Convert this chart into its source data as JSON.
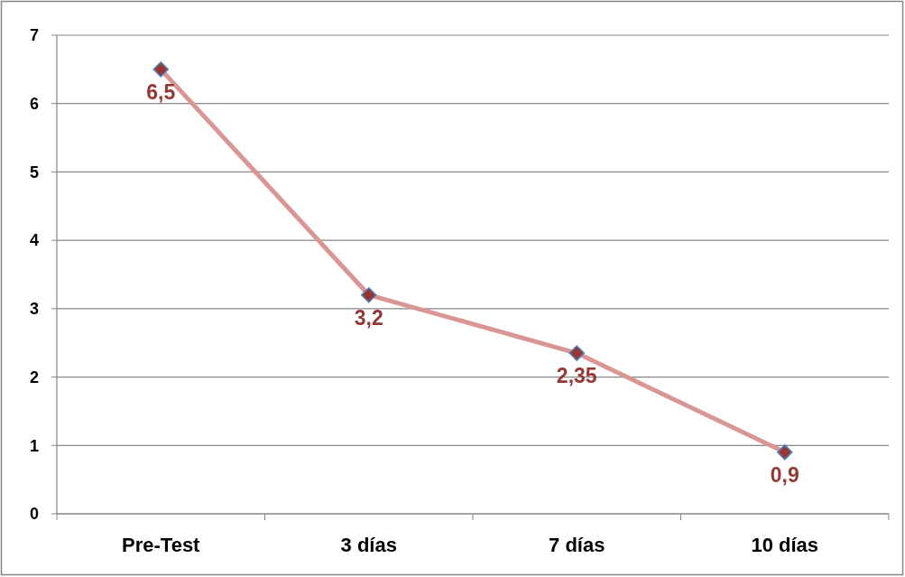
{
  "chart_data": {
    "type": "line",
    "categories": [
      "Pre-Test",
      "3 días",
      "7 días",
      "10 días"
    ],
    "series": [
      {
        "color": "#d99694",
        "values": [
          6.5,
          3.2,
          2.35,
          0.9
        ],
        "value_labels": [
          "6,5",
          "3,2",
          "2,35",
          "0,9"
        ]
      }
    ],
    "ylim": [
      0,
      7
    ],
    "yticks": [
      0,
      1,
      2,
      3,
      4,
      5,
      6,
      7
    ],
    "grid": "y",
    "marker": "diamond"
  }
}
